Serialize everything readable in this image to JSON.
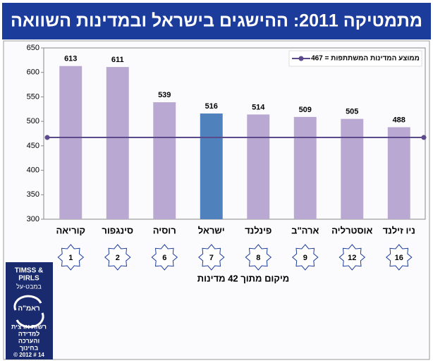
{
  "chart_data": {
    "type": "bar",
    "title": "מתמטיקה 2011: ההישגים בישראל ובמדינות השוואה",
    "categories": [
      "קוריאה",
      "סינגפור",
      "רוסיה",
      "ישראל",
      "פינלנד",
      "ארה\"ב",
      "אוסטרליה",
      "ניו זילנד"
    ],
    "values": [
      613,
      611,
      539,
      516,
      514,
      509,
      505,
      488
    ],
    "colors": [
      "#b9a9d2",
      "#b9a9d2",
      "#b9a9d2",
      "#4f81bd",
      "#b9a9d2",
      "#b9a9d2",
      "#b9a9d2",
      "#b9a9d2"
    ],
    "ylim": [
      300,
      650
    ],
    "yticks": [
      300,
      350,
      400,
      450,
      500,
      550,
      600,
      650
    ],
    "average": {
      "name": "ממוצע המדינות המשתתפות = 467",
      "value": 467,
      "color": "#5b4a8c"
    },
    "legend": "upper right",
    "ranks": [
      1,
      2,
      6,
      7,
      8,
      9,
      12,
      16
    ],
    "ranks_caption": "מיקום מתוך 42 מדינות"
  },
  "logo": {
    "line1": "TIMSS &",
    "line2": "PIRLS",
    "line3": "במבט-על",
    "mark": "ראמ\"ה",
    "org": [
      "רשות ארצית",
      "למדידה",
      "והערכה",
      "בחינוך"
    ],
    "footer": "© 2012 # 14"
  }
}
